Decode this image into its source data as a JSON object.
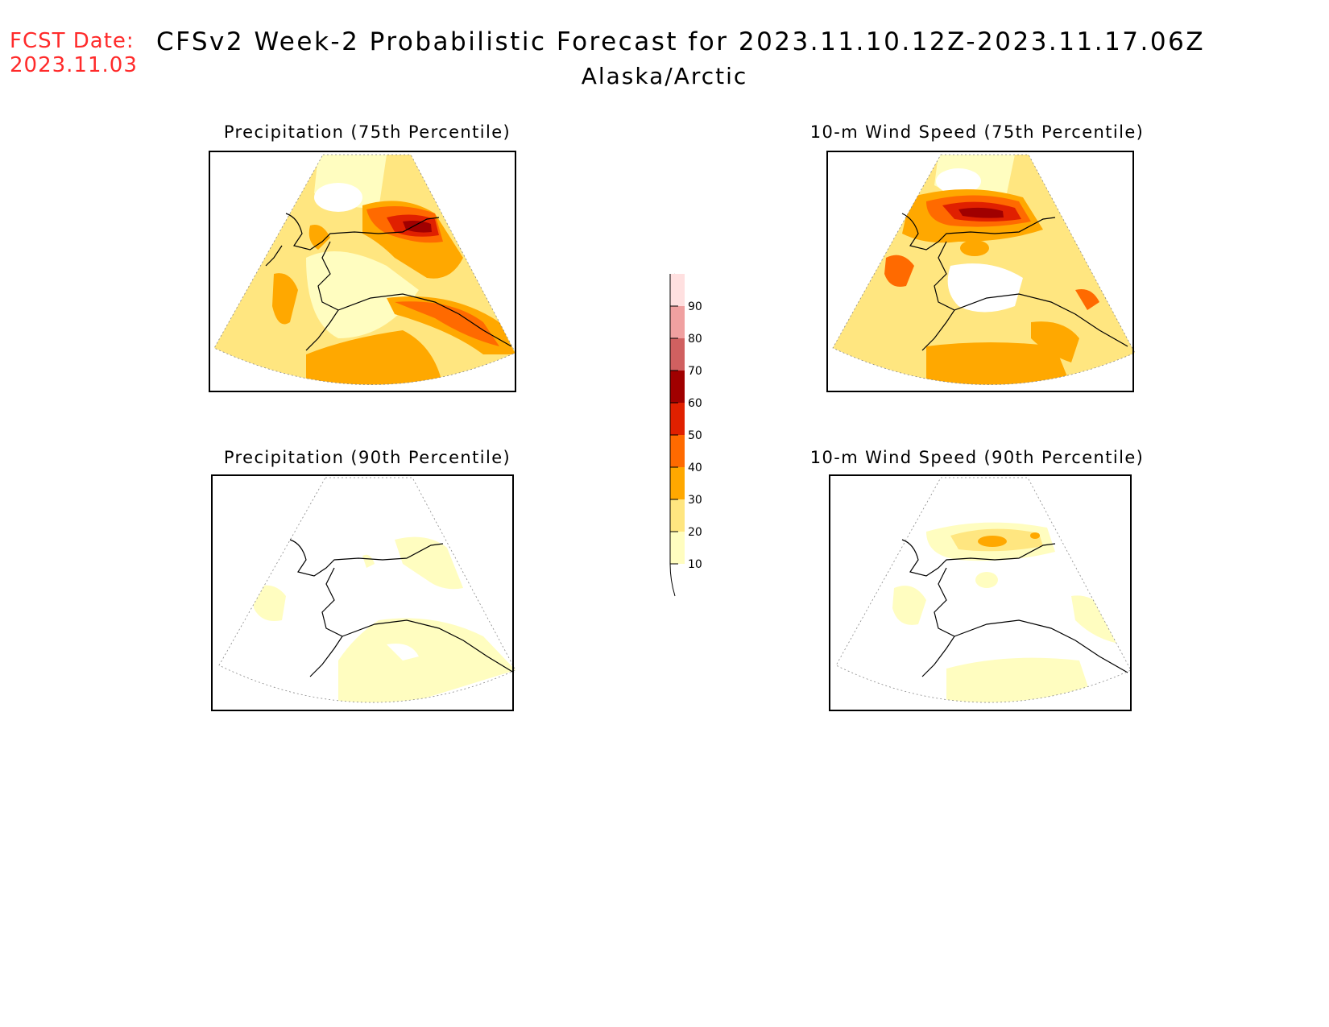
{
  "header": {
    "fcst_label": "FCST Date:",
    "fcst_date": "2023.11.03",
    "title": "CFSv2 Week-2 Probabilistic Forecast for 2023.11.10.12Z-2023.11.17.06Z",
    "region": "Alaska/Arctic"
  },
  "panels": [
    {
      "id": "precip-75",
      "title": "Precipitation (75th Percentile)"
    },
    {
      "id": "wind-75",
      "title": "10-m Wind Speed (75th Percentile)"
    },
    {
      "id": "precip-90",
      "title": "Precipitation (90th Percentile)"
    },
    {
      "id": "wind-90",
      "title": "10-m Wind Speed (90th Percentile)"
    }
  ],
  "colorbar": {
    "levels": [
      "10",
      "20",
      "30",
      "40",
      "50",
      "60",
      "70",
      "80",
      "90"
    ],
    "colors": [
      "#fffdc0",
      "#ffe680",
      "#ffa800",
      "#ff6a00",
      "#e02000",
      "#a00000",
      "#d06060",
      "#f0a0a0",
      "#ffe0e0"
    ]
  }
}
